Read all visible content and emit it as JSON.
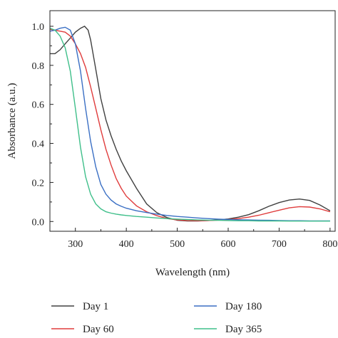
{
  "chart_data": {
    "type": "line",
    "title": "",
    "xlabel": "Wavelength (nm)",
    "ylabel": "Absorbance (a.u.)",
    "xlim": [
      250,
      810
    ],
    "ylim": [
      -0.05,
      1.08
    ],
    "x_ticks": [
      300,
      400,
      500,
      600,
      700,
      800
    ],
    "y_ticks": [
      0.0,
      0.2,
      0.4,
      0.6,
      0.8,
      1.0
    ],
    "x_tick_labels": [
      "300",
      "400",
      "500",
      "600",
      "700",
      "800"
    ],
    "y_tick_labels": [
      "0.0",
      "0.2",
      "0.4",
      "0.6",
      "0.8",
      "1.0"
    ],
    "grid": false,
    "legend_position": "bottom",
    "series": [
      {
        "name": "Day 1",
        "color": "#404040",
        "points": [
          [
            250,
            0.86
          ],
          [
            260,
            0.86
          ],
          [
            270,
            0.88
          ],
          [
            280,
            0.91
          ],
          [
            290,
            0.94
          ],
          [
            300,
            0.97
          ],
          [
            310,
            0.99
          ],
          [
            318,
            1.0
          ],
          [
            325,
            0.98
          ],
          [
            330,
            0.93
          ],
          [
            340,
            0.78
          ],
          [
            350,
            0.63
          ],
          [
            360,
            0.52
          ],
          [
            370,
            0.44
          ],
          [
            380,
            0.37
          ],
          [
            390,
            0.31
          ],
          [
            400,
            0.26
          ],
          [
            420,
            0.17
          ],
          [
            440,
            0.09
          ],
          [
            460,
            0.045
          ],
          [
            480,
            0.02
          ],
          [
            500,
            0.006
          ],
          [
            520,
            0.003
          ],
          [
            540,
            0.003
          ],
          [
            560,
            0.005
          ],
          [
            580,
            0.008
          ],
          [
            600,
            0.013
          ],
          [
            620,
            0.022
          ],
          [
            640,
            0.035
          ],
          [
            660,
            0.055
          ],
          [
            680,
            0.078
          ],
          [
            700,
            0.097
          ],
          [
            720,
            0.11
          ],
          [
            740,
            0.115
          ],
          [
            760,
            0.108
          ],
          [
            780,
            0.085
          ],
          [
            800,
            0.055
          ]
        ]
      },
      {
        "name": "Day 60",
        "color": "#e03c3c",
        "points": [
          [
            250,
            0.985
          ],
          [
            260,
            0.98
          ],
          [
            270,
            0.975
          ],
          [
            280,
            0.97
          ],
          [
            290,
            0.95
          ],
          [
            300,
            0.91
          ],
          [
            310,
            0.86
          ],
          [
            320,
            0.79
          ],
          [
            330,
            0.69
          ],
          [
            340,
            0.58
          ],
          [
            350,
            0.47
          ],
          [
            360,
            0.37
          ],
          [
            370,
            0.29
          ],
          [
            380,
            0.22
          ],
          [
            390,
            0.17
          ],
          [
            400,
            0.13
          ],
          [
            420,
            0.08
          ],
          [
            440,
            0.05
          ],
          [
            460,
            0.03
          ],
          [
            480,
            0.015
          ],
          [
            500,
            0.008
          ],
          [
            520,
            0.005
          ],
          [
            540,
            0.004
          ],
          [
            560,
            0.005
          ],
          [
            580,
            0.007
          ],
          [
            600,
            0.01
          ],
          [
            620,
            0.015
          ],
          [
            640,
            0.022
          ],
          [
            660,
            0.032
          ],
          [
            680,
            0.045
          ],
          [
            700,
            0.058
          ],
          [
            720,
            0.07
          ],
          [
            740,
            0.076
          ],
          [
            760,
            0.074
          ],
          [
            780,
            0.065
          ],
          [
            800,
            0.05
          ]
        ]
      },
      {
        "name": "Day 180",
        "color": "#3a6fc4",
        "points": [
          [
            250,
            0.975
          ],
          [
            260,
            0.98
          ],
          [
            270,
            0.99
          ],
          [
            280,
            0.995
          ],
          [
            290,
            0.98
          ],
          [
            300,
            0.91
          ],
          [
            310,
            0.77
          ],
          [
            320,
            0.58
          ],
          [
            330,
            0.41
          ],
          [
            340,
            0.28
          ],
          [
            350,
            0.19
          ],
          [
            360,
            0.14
          ],
          [
            370,
            0.11
          ],
          [
            380,
            0.09
          ],
          [
            390,
            0.078
          ],
          [
            400,
            0.068
          ],
          [
            420,
            0.055
          ],
          [
            440,
            0.046
          ],
          [
            460,
            0.038
          ],
          [
            480,
            0.031
          ],
          [
            500,
            0.026
          ],
          [
            520,
            0.022
          ],
          [
            540,
            0.018
          ],
          [
            560,
            0.015
          ],
          [
            580,
            0.012
          ],
          [
            600,
            0.01
          ],
          [
            620,
            0.009
          ],
          [
            640,
            0.008
          ],
          [
            660,
            0.007
          ],
          [
            680,
            0.006
          ],
          [
            700,
            0.005
          ],
          [
            720,
            0.004
          ],
          [
            740,
            0.004
          ],
          [
            760,
            0.003
          ],
          [
            780,
            0.003
          ],
          [
            800,
            0.003
          ]
        ]
      },
      {
        "name": "Day 365",
        "color": "#3fbf8a",
        "points": [
          [
            250,
            0.99
          ],
          [
            260,
            0.98
          ],
          [
            270,
            0.95
          ],
          [
            280,
            0.89
          ],
          [
            290,
            0.77
          ],
          [
            300,
            0.58
          ],
          [
            310,
            0.38
          ],
          [
            320,
            0.23
          ],
          [
            330,
            0.14
          ],
          [
            340,
            0.09
          ],
          [
            350,
            0.065
          ],
          [
            360,
            0.05
          ],
          [
            370,
            0.043
          ],
          [
            380,
            0.038
          ],
          [
            390,
            0.034
          ],
          [
            400,
            0.031
          ],
          [
            420,
            0.026
          ],
          [
            440,
            0.022
          ],
          [
            460,
            0.018
          ],
          [
            480,
            0.015
          ],
          [
            500,
            0.012
          ],
          [
            520,
            0.01
          ],
          [
            540,
            0.008
          ],
          [
            560,
            0.007
          ],
          [
            580,
            0.006
          ],
          [
            600,
            0.005
          ],
          [
            620,
            0.004
          ],
          [
            640,
            0.004
          ],
          [
            660,
            0.003
          ],
          [
            680,
            0.003
          ],
          [
            700,
            0.003
          ],
          [
            720,
            0.002
          ],
          [
            740,
            0.002
          ],
          [
            760,
            0.002
          ],
          [
            780,
            0.002
          ],
          [
            800,
            0.002
          ]
        ]
      }
    ]
  }
}
